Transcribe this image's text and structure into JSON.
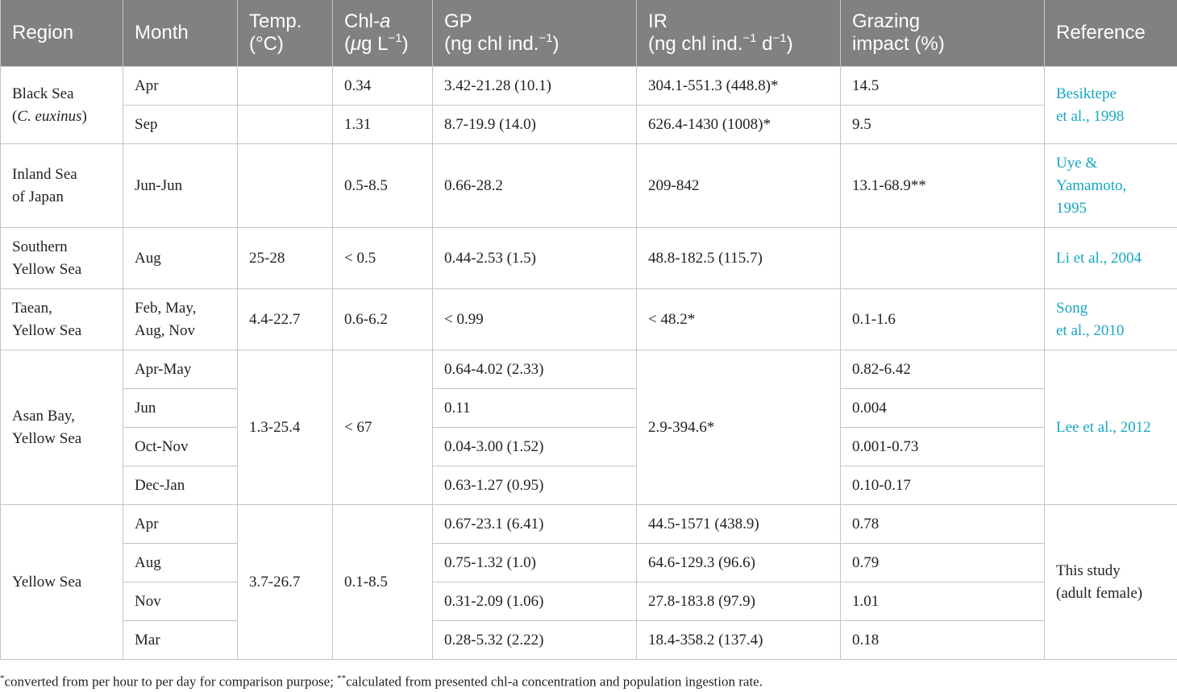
{
  "headers": {
    "region": "Region",
    "month": "Month",
    "temp_l1": "Temp.",
    "temp_l2": "(°C)",
    "chla_l1_a": "Chl-",
    "chla_l1_b": "a",
    "chla_l2_a": "(",
    "chla_l2_mu": "μ",
    "chla_l2_b": "g L",
    "chla_l2_sup": "−1",
    "chla_l2_c": ")",
    "gp_l1": "GP",
    "gp_l2_a": "(ng chl ind.",
    "gp_l2_sup": "−1",
    "gp_l2_c": ")",
    "ir_l1": "IR",
    "ir_l2_a": "(ng chl ind.",
    "ir_l2_sup1": "−1",
    "ir_l2_b": " d",
    "ir_l2_sup2": "−1",
    "ir_l2_c": ")",
    "gi_l1": "Grazing",
    "gi_l2": "impact (%)",
    "reference": "Reference"
  },
  "groups": {
    "black_sea": {
      "region_l1": "Black Sea",
      "region_l2_a": "(",
      "region_l2_i": "C. euxinus",
      "region_l2_b": ")",
      "ref_l1": "Besiktepe",
      "ref_l2": "et al., 1998",
      "rows": [
        {
          "month": "Apr",
          "temp": "",
          "chla": "0.34",
          "gp": "3.42-21.28 (10.1)",
          "ir": "304.1-551.3 (448.8)*",
          "gi": "14.5"
        },
        {
          "month": "Sep",
          "temp": "",
          "chla": "1.31",
          "gp": "8.7-19.9 (14.0)",
          "ir": "626.4-1430 (1008)*",
          "gi": "9.5"
        }
      ]
    },
    "inland_sea": {
      "region_l1": "Inland Sea",
      "region_l2": "of Japan",
      "ref_l1": "Uye &",
      "ref_l2": "Yamamoto,",
      "ref_l3": "1995",
      "rows": [
        {
          "month": "Jun-Jun",
          "temp": "",
          "chla": "0.5-8.5",
          "gp": "0.66-28.2",
          "ir": "209-842",
          "gi": "13.1-68.9**"
        }
      ]
    },
    "southern_yellow": {
      "region_l1": "Southern",
      "region_l2": "Yellow Sea",
      "ref": "Li et al., 2004",
      "rows": [
        {
          "month": "Aug",
          "temp": "25-28",
          "chla": "< 0.5",
          "gp": "0.44-2.53 (1.5)",
          "ir": "48.8-182.5 (115.7)",
          "gi": ""
        }
      ]
    },
    "taean": {
      "region_l1": "Taean,",
      "region_l2": "Yellow Sea",
      "ref_l1": "Song",
      "ref_l2": "et al., 2010",
      "rows": [
        {
          "month_l1": "Feb, May,",
          "month_l2": "Aug, Nov",
          "temp": "4.4-22.7",
          "chla": "0.6-6.2",
          "gp": "< 0.99",
          "ir": "< 48.2*",
          "gi": "0.1-1.6"
        }
      ]
    },
    "asan_bay": {
      "region_l1": "Asan Bay,",
      "region_l2": "Yellow Sea",
      "temp": "1.3-25.4",
      "chla": "< 67",
      "ir": "2.9-394.6*",
      "ref": "Lee et al., 2012",
      "rows": [
        {
          "month": "Apr-May",
          "gp": "0.64-4.02 (2.33)",
          "gi": "0.82-6.42"
        },
        {
          "month": "Jun",
          "gp": "0.11",
          "gi": "0.004"
        },
        {
          "month": "Oct-Nov",
          "gp": "0.04-3.00 (1.52)",
          "gi": "0.001-0.73"
        },
        {
          "month": "Dec-Jan",
          "gp": "0.63-1.27 (0.95)",
          "gi": "0.10-0.17"
        }
      ]
    },
    "yellow_sea": {
      "region": "Yellow Sea",
      "temp": "3.7-26.7",
      "chla": "0.1-8.5",
      "ref_l1": "This study",
      "ref_l2": "(adult female)",
      "rows": [
        {
          "month": "Apr",
          "gp": "0.67-23.1 (6.41)",
          "ir": "44.5-1571 (438.9)",
          "gi": "0.78"
        },
        {
          "month": "Aug",
          "gp": "0.75-1.32 (1.0)",
          "ir": "64.6-129.3 (96.6)",
          "gi": "0.79"
        },
        {
          "month": "Nov",
          "gp": "0.31-2.09 (1.06)",
          "ir": "27.8-183.8 (97.9)",
          "gi": "1.01"
        },
        {
          "month": "Mar",
          "gp": "0.28-5.32 (2.22)",
          "ir": "18.4-358.2 (137.4)",
          "gi": "0.18"
        }
      ]
    }
  },
  "footnote": {
    "star1": "*",
    "text1": "converted from per hour to per day for comparison purpose; ",
    "star2": "**",
    "text2": "calculated from presented chl-a concentration and population ingestion rate."
  }
}
